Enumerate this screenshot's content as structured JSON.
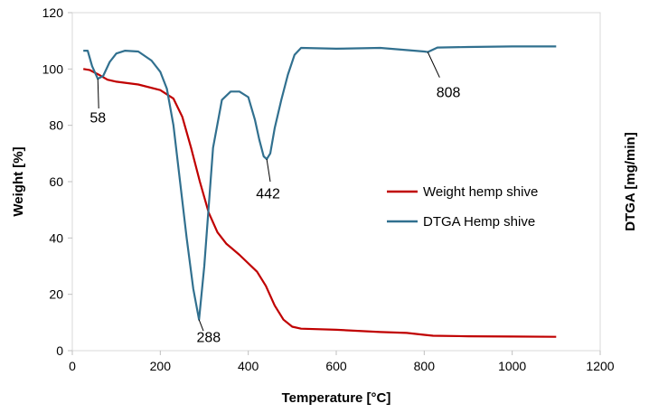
{
  "chart_data": {
    "type": "line",
    "xlabel": "Temperature [°C]",
    "ylabel": "Weight [%]",
    "y2label": "DTGA [mg/min]",
    "xlim": [
      0,
      1200
    ],
    "ylim": [
      0,
      120
    ],
    "xticks": [
      0,
      200,
      400,
      600,
      800,
      1000,
      1200
    ],
    "yticks": [
      0,
      20,
      40,
      60,
      80,
      100,
      120
    ],
    "grid": false,
    "legend_position": "right",
    "series": [
      {
        "name": "Weight hemp shive",
        "color": "#c00000",
        "x": [
          25,
          40,
          60,
          80,
          100,
          150,
          200,
          230,
          250,
          270,
          290,
          310,
          330,
          350,
          380,
          420,
          440,
          460,
          480,
          500,
          520,
          600,
          700,
          760,
          800,
          820,
          900,
          1000,
          1100
        ],
        "y": [
          100,
          99.6,
          98,
          96.2,
          95.5,
          94.5,
          92.5,
          89.5,
          83,
          72,
          60,
          49,
          42,
          38,
          34,
          28,
          23,
          16,
          11,
          8.5,
          7.8,
          7.4,
          6.6,
          6.3,
          5.6,
          5.3,
          5.1,
          5.0,
          4.9
        ]
      },
      {
        "name": "DTGA Hemp shive",
        "color": "#31708f",
        "x": [
          25,
          35,
          45,
          58,
          70,
          85,
          100,
          120,
          150,
          180,
          200,
          215,
          230,
          245,
          260,
          275,
          288,
          300,
          320,
          340,
          360,
          380,
          400,
          415,
          425,
          435,
          442,
          450,
          460,
          475,
          490,
          505,
          520,
          600,
          700,
          800,
          808,
          830,
          900,
          1000,
          1100
        ],
        "y": [
          106.5,
          106.5,
          101,
          96.5,
          97.5,
          102.5,
          105.5,
          106.5,
          106.2,
          103,
          99,
          93,
          80,
          60,
          40,
          22,
          11,
          30,
          72,
          89,
          92,
          92,
          90,
          82,
          75,
          69,
          68,
          70,
          79,
          89,
          98,
          105,
          107.5,
          107.2,
          107.5,
          106.2,
          106,
          107.6,
          107.8,
          108,
          108
        ]
      }
    ],
    "annotations": [
      {
        "text": "58",
        "x": 58,
        "y": 96.5,
        "tx": 60,
        "ty": 86,
        "label_x": 58,
        "label_y": 83
      },
      {
        "text": "288",
        "x": 288,
        "y": 11,
        "tx": 298,
        "ty": 7,
        "label_x": 310,
        "label_y": 5
      },
      {
        "text": "442",
        "x": 442,
        "y": 68,
        "tx": 450,
        "ty": 60,
        "label_x": 445,
        "label_y": 56
      },
      {
        "text": "808",
        "x": 808,
        "y": 106,
        "tx": 835,
        "ty": 97,
        "label_x": 855,
        "label_y": 92
      }
    ]
  }
}
